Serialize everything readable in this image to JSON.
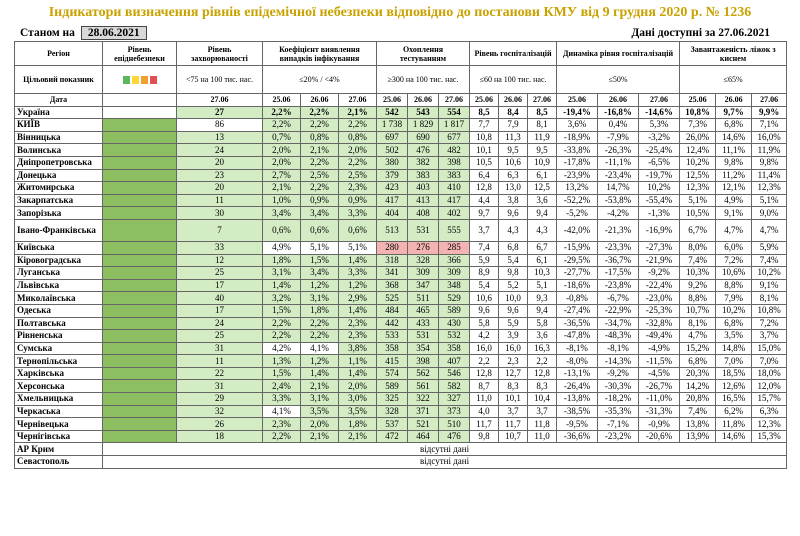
{
  "title": "Індикатори визначення рівнів епідемічної небезпеки відповідно до постанови КМУ від 9 грудня 2020 р. № 1236",
  "status": {
    "label": "Станом на",
    "date": "28.06.2021",
    "data_label": "Дані доступні за",
    "data_date": "27.06.2021"
  },
  "headers": {
    "region": "Регіон",
    "level": "Рівень епіднебезпеки",
    "incidence": "Рівень захворюваності",
    "detection": "Коефіцієнт виявлення випадків інфікування",
    "testing": "Охоплення тестуванням",
    "hosp": "Рівень госпіталізацій",
    "dynamics": "Динаміка рівня госпіталізацій",
    "oxygen": "Завантаженість ліжок з киснем"
  },
  "target": {
    "label": "Цільовий показник",
    "incidence": "<75 на 100 тис. нас.",
    "detection": "≤20% / <4%",
    "testing": "≥300 на 100 тис. нас.",
    "hosp": "≤60 на 100 тис. нас.",
    "dynamics": "≤50%",
    "oxygen": "≤65%",
    "chip_colors": [
      "#5cb85c",
      "#ffd633",
      "#f0a030",
      "#e05050"
    ]
  },
  "date_row": {
    "label": "Дата",
    "incidence": "27.06",
    "detection": [
      "25.06",
      "26.06",
      "27.06"
    ],
    "testing": [
      "25.06",
      "26.06",
      "27.06"
    ],
    "hosp": [
      "25.06",
      "26.06",
      "27.06"
    ],
    "dynamics": [
      "25.06",
      "26.06",
      "27.06"
    ],
    "oxygen": [
      "25.06",
      "26.06",
      "27.06"
    ]
  },
  "ukraine": {
    "name": "Україна",
    "inc": "27",
    "det": [
      "2,2%",
      "2,2%",
      "2,1%"
    ],
    "test": [
      "542",
      "543",
      "554"
    ],
    "hosp": [
      "8,5",
      "8,4",
      "8,5"
    ],
    "dyn": [
      "-19,4%",
      "-16,8%",
      "-14,6%"
    ],
    "oxy": [
      "10,8%",
      "9,7%",
      "9,9%"
    ]
  },
  "regions": [
    {
      "name": "КИЇВ",
      "inc": "86",
      "det": [
        "2,2%",
        "2,2%",
        "2,2%"
      ],
      "test": [
        "1 738",
        "1 829",
        "1 817"
      ],
      "hosp": [
        "7,7",
        "7,9",
        "8,1"
      ],
      "dyn": [
        "3,6%",
        "0,4%",
        "5,3%"
      ],
      "oxy": [
        "7,3%",
        "6,8%",
        "7,1%"
      ]
    },
    {
      "name": "Вінницька",
      "inc": "13",
      "det": [
        "0,7%",
        "0,8%",
        "0,8%"
      ],
      "test": [
        "697",
        "690",
        "677"
      ],
      "hosp": [
        "10,8",
        "11,3",
        "11,9"
      ],
      "dyn": [
        "-18,9%",
        "-7,9%",
        "-3,2%"
      ],
      "oxy": [
        "26,0%",
        "14,6%",
        "16,0%"
      ]
    },
    {
      "name": "Волинська",
      "inc": "24",
      "det": [
        "2,0%",
        "2,1%",
        "2,0%"
      ],
      "test": [
        "502",
        "476",
        "482"
      ],
      "hosp": [
        "10,1",
        "9,5",
        "9,5"
      ],
      "dyn": [
        "-33,8%",
        "-26,3%",
        "-25,4%"
      ],
      "oxy": [
        "12,4%",
        "11,1%",
        "11,9%"
      ]
    },
    {
      "name": "Дніпропетровська",
      "inc": "20",
      "det": [
        "2,0%",
        "2,2%",
        "2,2%"
      ],
      "test": [
        "380",
        "382",
        "398"
      ],
      "hosp": [
        "10,5",
        "10,6",
        "10,9"
      ],
      "dyn": [
        "-17,8%",
        "-11,1%",
        "-6,5%"
      ],
      "oxy": [
        "10,2%",
        "9,8%",
        "9,8%"
      ]
    },
    {
      "name": "Донецька",
      "inc": "23",
      "det": [
        "2,7%",
        "2,5%",
        "2,5%"
      ],
      "test": [
        "379",
        "383",
        "383"
      ],
      "hosp": [
        "6,4",
        "6,3",
        "6,1"
      ],
      "dyn": [
        "-23,9%",
        "-23,4%",
        "-19,7%"
      ],
      "oxy": [
        "12,5%",
        "11,2%",
        "11,4%"
      ]
    },
    {
      "name": "Житомирська",
      "inc": "20",
      "det": [
        "2,1%",
        "2,2%",
        "2,3%"
      ],
      "test": [
        "423",
        "403",
        "410"
      ],
      "hosp": [
        "12,8",
        "13,0",
        "12,5"
      ],
      "dyn": [
        "13,2%",
        "14,7%",
        "10,2%"
      ],
      "oxy": [
        "12,3%",
        "12,1%",
        "12,3%"
      ]
    },
    {
      "name": "Закарпатська",
      "inc": "11",
      "det": [
        "1,0%",
        "0,9%",
        "0,9%"
      ],
      "test": [
        "417",
        "413",
        "417"
      ],
      "hosp": [
        "4,4",
        "3,8",
        "3,6"
      ],
      "dyn": [
        "-52,2%",
        "-53,8%",
        "-55,4%"
      ],
      "oxy": [
        "5,1%",
        "4,9%",
        "5,1%"
      ]
    },
    {
      "name": "Запорізька",
      "inc": "30",
      "det": [
        "3,4%",
        "3,4%",
        "3,3%"
      ],
      "test": [
        "404",
        "408",
        "402"
      ],
      "hosp": [
        "9,7",
        "9,6",
        "9,4"
      ],
      "dyn": [
        "-5,2%",
        "-4,2%",
        "-1,3%"
      ],
      "oxy": [
        "10,5%",
        "9,1%",
        "9,0%"
      ]
    },
    {
      "name": "Івано-Франківська",
      "inc": "7",
      "det": [
        "0,6%",
        "0,6%",
        "0,6%"
      ],
      "test": [
        "513",
        "531",
        "555"
      ],
      "hosp": [
        "3,7",
        "4,3",
        "4,3"
      ],
      "dyn": [
        "-42,0%",
        "-21,3%",
        "-16,9%"
      ],
      "oxy": [
        "6,7%",
        "4,7%",
        "4,7%"
      ],
      "tall": true
    },
    {
      "name": "Київська",
      "inc": "33",
      "det": [
        "4,9%",
        "5,1%",
        "5,1%"
      ],
      "det_bg": [
        "w",
        "w",
        "w"
      ],
      "test": [
        "280",
        "276",
        "285"
      ],
      "test_bg": [
        "p",
        "p",
        "p"
      ],
      "hosp": [
        "7,4",
        "6,8",
        "6,7"
      ],
      "dyn": [
        "-15,9%",
        "-23,3%",
        "-27,3%"
      ],
      "oxy": [
        "8,0%",
        "6,0%",
        "5,9%"
      ]
    },
    {
      "name": "Кіровоградська",
      "inc": "12",
      "det": [
        "1,8%",
        "1,5%",
        "1,4%"
      ],
      "test": [
        "318",
        "328",
        "366"
      ],
      "hosp": [
        "5,9",
        "5,4",
        "6,1"
      ],
      "dyn": [
        "-29,5%",
        "-36,7%",
        "-21,9%"
      ],
      "oxy": [
        "7,4%",
        "7,2%",
        "7,4%"
      ]
    },
    {
      "name": "Луганська",
      "inc": "25",
      "det": [
        "3,1%",
        "3,4%",
        "3,3%"
      ],
      "test": [
        "341",
        "309",
        "309"
      ],
      "hosp": [
        "8,9",
        "9,8",
        "10,3"
      ],
      "dyn": [
        "-27,7%",
        "-17,5%",
        "-9,2%"
      ],
      "oxy": [
        "10,3%",
        "10,6%",
        "10,2%"
      ]
    },
    {
      "name": "Львівська",
      "inc": "17",
      "det": [
        "1,4%",
        "1,2%",
        "1,2%"
      ],
      "test": [
        "368",
        "347",
        "348"
      ],
      "hosp": [
        "5,4",
        "5,2",
        "5,1"
      ],
      "dyn": [
        "-18,6%",
        "-23,8%",
        "-22,4%"
      ],
      "oxy": [
        "9,2%",
        "8,8%",
        "9,1%"
      ]
    },
    {
      "name": "Миколаївська",
      "inc": "40",
      "det": [
        "3,2%",
        "3,1%",
        "2,9%"
      ],
      "test": [
        "525",
        "511",
        "529"
      ],
      "hosp": [
        "10,6",
        "10,0",
        "9,3"
      ],
      "dyn": [
        "-0,8%",
        "-6,7%",
        "-23,0%"
      ],
      "oxy": [
        "8,8%",
        "7,9%",
        "8,1%"
      ]
    },
    {
      "name": "Одеська",
      "inc": "17",
      "det": [
        "1,5%",
        "1,8%",
        "1,4%"
      ],
      "test": [
        "484",
        "465",
        "589"
      ],
      "hosp": [
        "9,6",
        "9,6",
        "9,4"
      ],
      "dyn": [
        "-27,4%",
        "-22,9%",
        "-25,3%"
      ],
      "oxy": [
        "10,7%",
        "10,2%",
        "10,8%"
      ]
    },
    {
      "name": "Полтавська",
      "inc": "24",
      "det": [
        "2,2%",
        "2,2%",
        "2,3%"
      ],
      "test": [
        "442",
        "433",
        "430"
      ],
      "hosp": [
        "5,8",
        "5,9",
        "5,8"
      ],
      "dyn": [
        "-36,5%",
        "-34,7%",
        "-32,8%"
      ],
      "oxy": [
        "8,1%",
        "6,8%",
        "7,2%"
      ]
    },
    {
      "name": "Рівненська",
      "inc": "25",
      "det": [
        "2,2%",
        "2,2%",
        "2,3%"
      ],
      "test": [
        "533",
        "531",
        "532"
      ],
      "hosp": [
        "4,2",
        "3,9",
        "3,6"
      ],
      "dyn": [
        "-47,8%",
        "-48,3%",
        "-49,4%"
      ],
      "oxy": [
        "4,7%",
        "3,5%",
        "3,7%"
      ]
    },
    {
      "name": "Сумська",
      "inc": "31",
      "det": [
        "4,2%",
        "4,1%",
        "3,8%"
      ],
      "det_bg": [
        "w",
        "w",
        "g"
      ],
      "test": [
        "358",
        "354",
        "358"
      ],
      "hosp": [
        "16,0",
        "16,0",
        "16,3"
      ],
      "dyn": [
        "-8,1%",
        "-8,1%",
        "-4,9%"
      ],
      "oxy": [
        "15,2%",
        "14,8%",
        "15,0%"
      ]
    },
    {
      "name": "Тернопільська",
      "inc": "11",
      "det": [
        "1,3%",
        "1,2%",
        "1,1%"
      ],
      "test": [
        "415",
        "398",
        "407"
      ],
      "hosp": [
        "2,2",
        "2,3",
        "2,2"
      ],
      "dyn": [
        "-8,0%",
        "-14,3%",
        "-11,5%"
      ],
      "oxy": [
        "6,8%",
        "7,0%",
        "7,0%"
      ]
    },
    {
      "name": "Харківська",
      "inc": "22",
      "det": [
        "1,5%",
        "1,4%",
        "1,4%"
      ],
      "test": [
        "574",
        "562",
        "546"
      ],
      "hosp": [
        "12,8",
        "12,7",
        "12,8"
      ],
      "dyn": [
        "-13,1%",
        "-9,2%",
        "-4,5%"
      ],
      "oxy": [
        "20,3%",
        "18,5%",
        "18,0%"
      ]
    },
    {
      "name": "Херсонська",
      "inc": "31",
      "det": [
        "2,4%",
        "2,1%",
        "2,0%"
      ],
      "test": [
        "589",
        "561",
        "582"
      ],
      "hosp": [
        "8,7",
        "8,3",
        "8,3"
      ],
      "dyn": [
        "-26,4%",
        "-30,3%",
        "-26,7%"
      ],
      "oxy": [
        "14,2%",
        "12,6%",
        "12,0%"
      ]
    },
    {
      "name": "Хмельницька",
      "inc": "29",
      "det": [
        "3,3%",
        "3,1%",
        "3,0%"
      ],
      "test": [
        "325",
        "322",
        "327"
      ],
      "hosp": [
        "11,0",
        "10,1",
        "10,4"
      ],
      "dyn": [
        "-13,8%",
        "-18,2%",
        "-11,0%"
      ],
      "oxy": [
        "20,8%",
        "16,5%",
        "15,7%"
      ]
    },
    {
      "name": "Черкаська",
      "inc": "32",
      "det": [
        "4,1%",
        "3,5%",
        "3,5%"
      ],
      "det_bg": [
        "w",
        "g",
        "g"
      ],
      "test": [
        "328",
        "371",
        "373"
      ],
      "hosp": [
        "4,0",
        "3,7",
        "3,7"
      ],
      "dyn": [
        "-38,5%",
        "-35,3%",
        "-31,3%"
      ],
      "oxy": [
        "7,4%",
        "6,2%",
        "6,3%"
      ]
    },
    {
      "name": "Чернівецька",
      "inc": "26",
      "det": [
        "2,3%",
        "2,0%",
        "1,8%"
      ],
      "test": [
        "537",
        "521",
        "510"
      ],
      "hosp": [
        "11,7",
        "11,7",
        "11,8"
      ],
      "dyn": [
        "-9,5%",
        "-7,1%",
        "-0,9%"
      ],
      "oxy": [
        "13,8%",
        "11,8%",
        "12,3%"
      ]
    },
    {
      "name": "Чернігівська",
      "inc": "18",
      "det": [
        "2,2%",
        "2,1%",
        "2,1%"
      ],
      "test": [
        "472",
        "464",
        "476"
      ],
      "hosp": [
        "9,8",
        "10,7",
        "11,0"
      ],
      "dyn": [
        "-36,6%",
        "-23,2%",
        "-20,6%"
      ],
      "oxy": [
        "13,9%",
        "14,6%",
        "15,3%"
      ]
    }
  ],
  "missing": [
    {
      "name": "АР Крим",
      "text": "відсутні дані"
    },
    {
      "name": "Севастополь",
      "text": "відсутні дані"
    }
  ]
}
